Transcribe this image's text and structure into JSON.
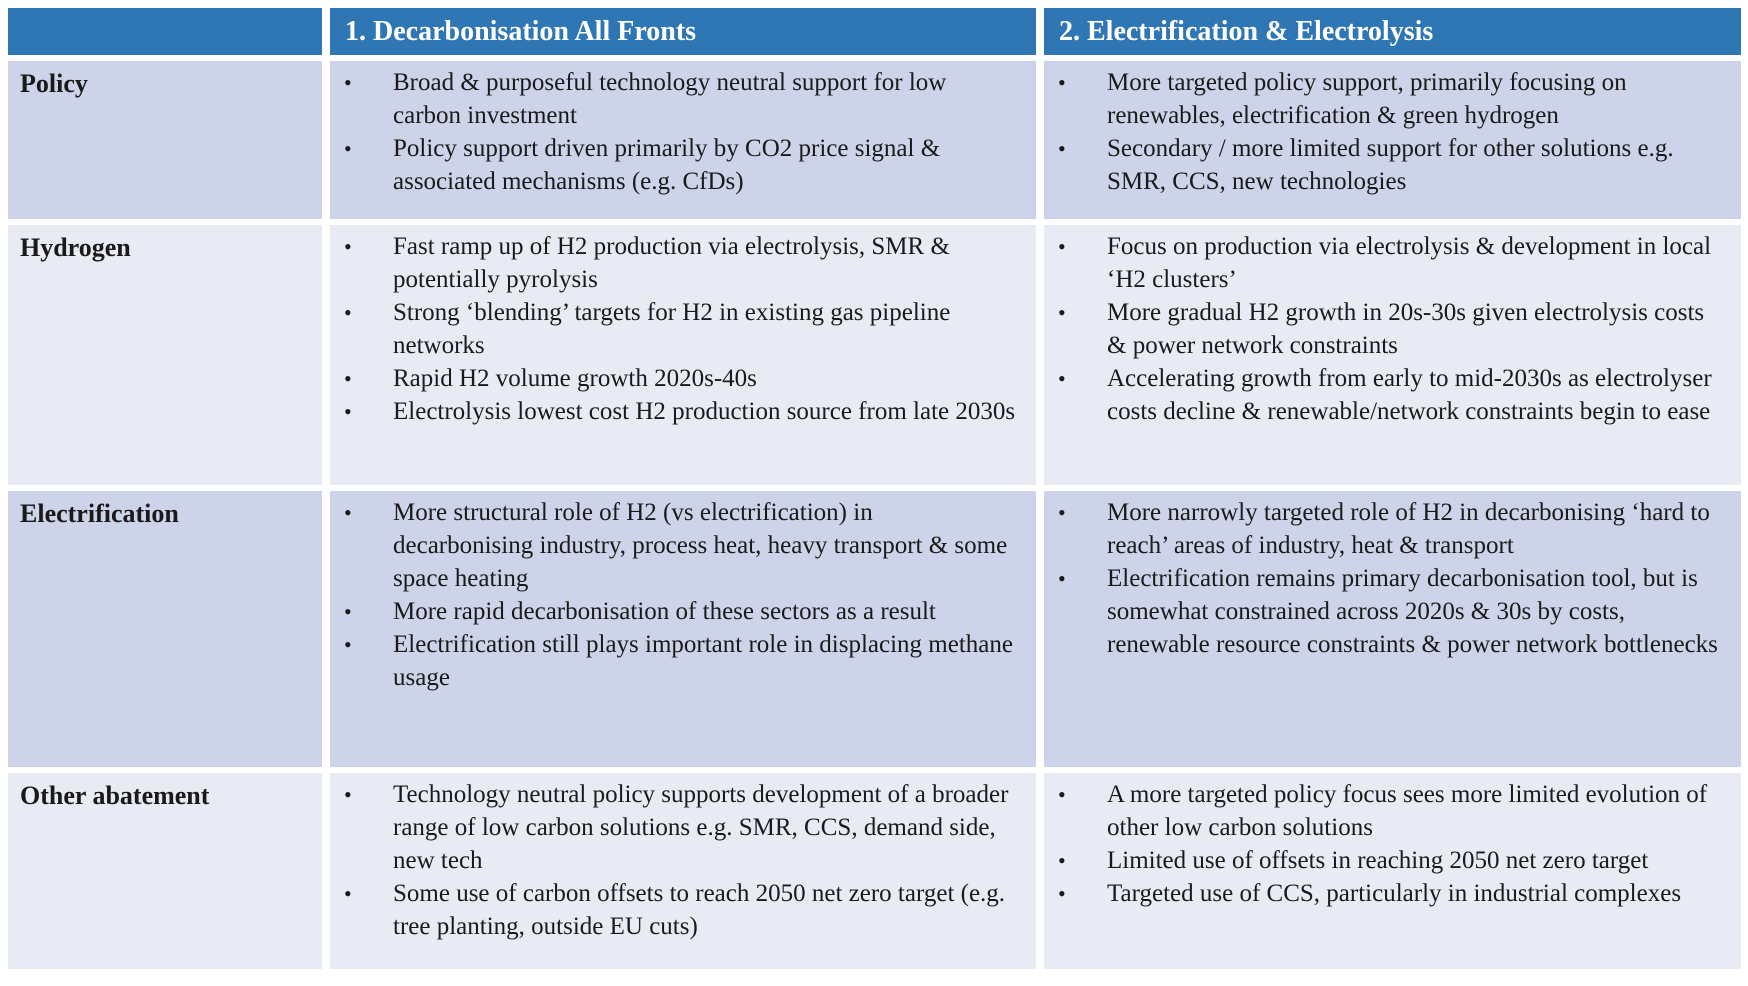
{
  "colors": {
    "header_bg": "#2F76B5",
    "header_text": "#FFFFFF",
    "band_dark": "#CDD3E8",
    "band_light": "#E9EBF4",
    "body_text": "#1A1A1A",
    "page_bg": "#FFFFFF"
  },
  "table": {
    "header": {
      "corner": "",
      "columns": [
        "1. Decarbonisation All Fronts",
        "2. Electrification & Electrolysis"
      ]
    },
    "rows": [
      {
        "label": "Policy",
        "col1": [
          "Broad & purposeful technology neutral support for low carbon investment",
          "Policy support driven primarily by CO2 price signal & associated mechanisms (e.g. CfDs)"
        ],
        "col2": [
          "More targeted policy support, primarily focusing on renewables, electrification & green hydrogen",
          "Secondary / more limited support for other solutions e.g. SMR, CCS, new technologies"
        ]
      },
      {
        "label": "Hydrogen",
        "col1": [
          "Fast ramp up of H2 production via electrolysis, SMR & potentially pyrolysis",
          "Strong ‘blending’ targets for H2 in existing gas pipeline networks",
          "Rapid H2 volume growth 2020s-40s",
          "Electrolysis lowest cost H2 production source from late 2030s"
        ],
        "col2": [
          "Focus on production via electrolysis & development in local ‘H2 clusters’",
          "More gradual H2 growth in 20s-30s given electrolysis costs & power network constraints",
          "Accelerating growth from early to mid-2030s as electrolyser costs decline & renewable/network constraints begin to ease"
        ]
      },
      {
        "label": "Electrification",
        "col1": [
          "More structural role of H2 (vs electrification) in decarbonising industry, process heat, heavy transport & some space heating",
          "More rapid decarbonisation of these sectors as a result",
          "Electrification still plays important role in displacing methane usage"
        ],
        "col2": [
          "More narrowly targeted role of H2 in decarbonising ‘hard to reach’ areas of industry, heat & transport",
          "Electrification remains primary decarbonisation tool, but is somewhat constrained across 2020s & 30s by costs, renewable resource constraints & power network bottlenecks"
        ]
      },
      {
        "label": "Other abatement",
        "col1": [
          "Technology neutral policy supports development of a broader range of low carbon solutions e.g. SMR, CCS, demand side, new tech",
          "Some use of carbon offsets to reach 2050 net zero target (e.g. tree planting, outside EU cuts)"
        ],
        "col2": [
          "A more targeted policy focus sees more limited evolution of other low carbon solutions",
          "Limited use of offsets in reaching 2050 net zero target",
          "Targeted use of CCS, particularly in industrial complexes"
        ]
      }
    ]
  }
}
